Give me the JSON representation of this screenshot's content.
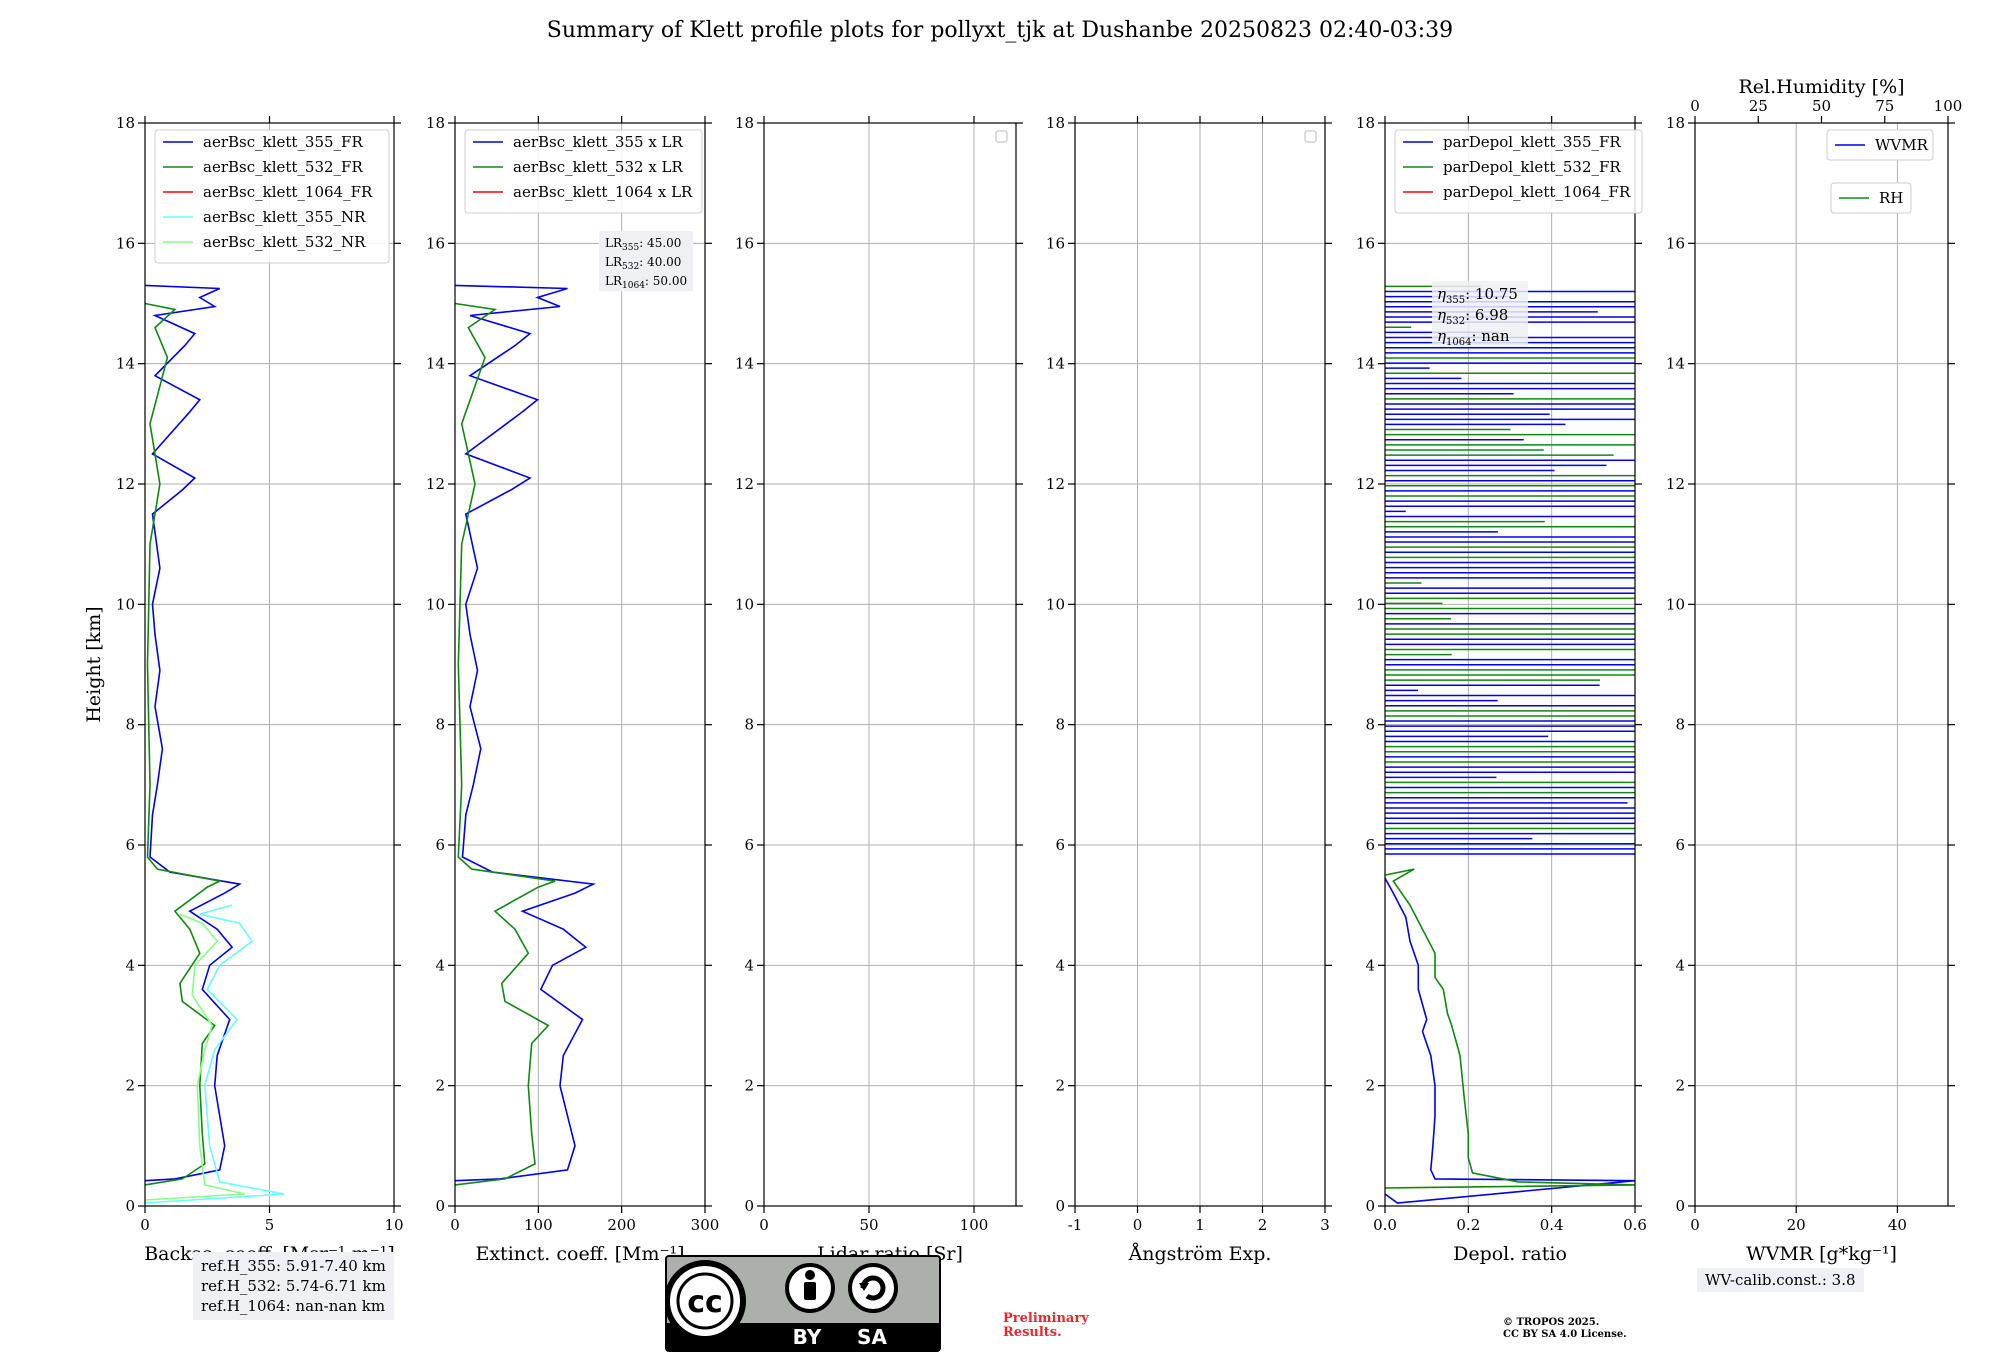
{
  "title": "Summary of Klett profile plots for pollyxt_tjk at Dushanbe 20250823 02:40-03:39",
  "colors": {
    "blue": "#0000ee",
    "green": "#118811",
    "red": "#ff0000",
    "cyan": "#66ffff",
    "lightgreen": "#88ff88",
    "grid": "#b0b0b0"
  },
  "chart_data": [
    {
      "type": "line",
      "id": "bsc",
      "xlabel": "Backsc. coeff. [Msr⁻¹ m⁻¹]",
      "ylabel": "Height [km]",
      "xlim": [
        0,
        10
      ],
      "ylim": [
        0,
        18
      ],
      "xticks": [
        0,
        5,
        10
      ],
      "yticks": [
        0,
        2,
        4,
        6,
        8,
        10,
        12,
        14,
        16,
        18
      ],
      "legend_position": "top-left",
      "legend": [
        {
          "label": "aerBsc_klett_355_FR",
          "color": "#0000ee"
        },
        {
          "label": "aerBsc_klett_532_FR",
          "color": "#118811"
        },
        {
          "label": "aerBsc_klett_1064_FR",
          "color": "#ff0000"
        },
        {
          "label": "aerBsc_klett_355_NR",
          "color": "#66ffff"
        },
        {
          "label": "aerBsc_klett_532_NR",
          "color": "#88ff88"
        }
      ],
      "series": [
        {
          "name": "aerBsc_klett_355_FR",
          "color": "#0000ee",
          "points": [
            [
              0,
              0.42
            ],
            [
              1.2,
              0.45
            ],
            [
              3.0,
              0.6
            ],
            [
              3.2,
              1.0
            ],
            [
              3.0,
              1.5
            ],
            [
              2.8,
              2.0
            ],
            [
              2.9,
              2.5
            ],
            [
              3.4,
              3.1
            ],
            [
              2.3,
              3.6
            ],
            [
              2.6,
              4.0
            ],
            [
              3.5,
              4.3
            ],
            [
              2.9,
              4.6
            ],
            [
              1.8,
              4.9
            ],
            [
              3.2,
              5.2
            ],
            [
              3.8,
              5.35
            ],
            [
              1.0,
              5.55
            ],
            [
              0.2,
              5.8
            ],
            [
              0.3,
              6.5
            ],
            [
              0.5,
              7.0
            ],
            [
              0.7,
              7.6
            ],
            [
              0.4,
              8.3
            ],
            [
              0.6,
              8.9
            ],
            [
              0.4,
              9.5
            ],
            [
              0.3,
              10.0
            ],
            [
              0.6,
              10.6
            ],
            [
              0.3,
              11.5
            ],
            [
              1.5,
              11.9
            ],
            [
              2.0,
              12.1
            ],
            [
              0.3,
              12.5
            ],
            [
              1.8,
              13.2
            ],
            [
              2.2,
              13.4
            ],
            [
              0.4,
              13.8
            ],
            [
              1.6,
              14.3
            ],
            [
              2.0,
              14.5
            ],
            [
              0.4,
              14.8
            ],
            [
              2.8,
              14.95
            ],
            [
              2.2,
              15.1
            ],
            [
              3.0,
              15.25
            ],
            [
              0,
              15.3
            ]
          ]
        },
        {
          "name": "aerBsc_klett_532_FR",
          "color": "#118811",
          "points": [
            [
              0,
              0.35
            ],
            [
              1.5,
              0.45
            ],
            [
              2.4,
              0.7
            ],
            [
              2.3,
              1.2
            ],
            [
              2.2,
              2.0
            ],
            [
              2.3,
              2.7
            ],
            [
              2.8,
              3.0
            ],
            [
              1.5,
              3.4
            ],
            [
              1.4,
              3.7
            ],
            [
              2.2,
              4.2
            ],
            [
              1.8,
              4.6
            ],
            [
              1.2,
              4.9
            ],
            [
              2.5,
              5.3
            ],
            [
              3.0,
              5.4
            ],
            [
              0.5,
              5.6
            ],
            [
              0.1,
              5.8
            ],
            [
              0.2,
              7.0
            ],
            [
              0.1,
              9.0
            ],
            [
              0.2,
              11.0
            ],
            [
              0.6,
              12.0
            ],
            [
              0.2,
              13.0
            ],
            [
              0.9,
              14.1
            ],
            [
              0.4,
              14.6
            ],
            [
              1.2,
              14.9
            ],
            [
              0,
              15.0
            ]
          ]
        },
        {
          "name": "aerBsc_klett_355_NR",
          "color": "#66ffff",
          "points": [
            [
              0,
              0.05
            ],
            [
              5.6,
              0.2
            ],
            [
              3.0,
              0.4
            ],
            [
              2.6,
              1.0
            ],
            [
              2.4,
              2.0
            ],
            [
              2.8,
              2.6
            ],
            [
              3.7,
              3.1
            ],
            [
              2.5,
              3.6
            ],
            [
              3.0,
              4.0
            ],
            [
              4.3,
              4.4
            ],
            [
              3.8,
              4.7
            ],
            [
              2.2,
              4.85
            ],
            [
              3.5,
              5.0
            ]
          ]
        },
        {
          "name": "aerBsc_klett_532_NR",
          "color": "#88ff88",
          "points": [
            [
              0,
              0.1
            ],
            [
              4.0,
              0.2
            ],
            [
              2.4,
              0.35
            ],
            [
              2.2,
              1.0
            ],
            [
              2.1,
              2.0
            ],
            [
              2.4,
              2.6
            ],
            [
              2.7,
              3.0
            ],
            [
              1.9,
              3.5
            ],
            [
              2.0,
              4.0
            ],
            [
              2.9,
              4.4
            ],
            [
              2.3,
              4.7
            ],
            [
              1.4,
              4.85
            ]
          ]
        }
      ],
      "info_box": [
        "ref.H_355: 5.91-7.40 km",
        "ref.H_532: 5.74-6.71 km",
        "ref.H_1064: nan-nan km"
      ]
    },
    {
      "type": "line",
      "id": "ext",
      "xlabel": "Extinct. coeff. [Mm⁻¹]",
      "xlim": [
        0,
        300
      ],
      "ylim": [
        0,
        18
      ],
      "xticks": [
        0,
        100,
        200,
        300
      ],
      "yticks": [
        0,
        2,
        4,
        6,
        8,
        10,
        12,
        14,
        16,
        18
      ],
      "legend_position": "top-left",
      "legend": [
        {
          "label": "aerBsc_klett_355 x LR",
          "color": "#0000ee"
        },
        {
          "label": "aerBsc_klett_532 x LR",
          "color": "#118811"
        },
        {
          "label": "aerBsc_klett_1064 x LR",
          "color": "#ff0000"
        }
      ],
      "lr_box": [
        {
          "sub": "355",
          "value": ": 45.00"
        },
        {
          "sub": "532",
          "value": ": 40.00"
        },
        {
          "sub": "1064",
          "value": ": 50.00"
        }
      ],
      "series": [
        {
          "name": "aerBsc_klett_355 x LR",
          "color": "#0000ee",
          "points": [
            [
              0,
              0.42
            ],
            [
              54,
              0.45
            ],
            [
              135,
              0.6
            ],
            [
              144,
              1.0
            ],
            [
              135,
              1.5
            ],
            [
              126,
              2.0
            ],
            [
              130,
              2.5
            ],
            [
              153,
              3.1
            ],
            [
              103,
              3.6
            ],
            [
              117,
              4.0
            ],
            [
              157,
              4.3
            ],
            [
              130,
              4.6
            ],
            [
              81,
              4.9
            ],
            [
              144,
              5.2
            ],
            [
              166,
              5.35
            ],
            [
              45,
              5.55
            ],
            [
              9,
              5.8
            ],
            [
              13,
              6.5
            ],
            [
              22,
              7.0
            ],
            [
              31,
              7.6
            ],
            [
              18,
              8.3
            ],
            [
              27,
              8.9
            ],
            [
              18,
              9.5
            ],
            [
              13,
              10.0
            ],
            [
              27,
              10.6
            ],
            [
              13,
              11.5
            ],
            [
              67,
              11.9
            ],
            [
              90,
              12.1
            ],
            [
              13,
              12.5
            ],
            [
              81,
              13.2
            ],
            [
              99,
              13.4
            ],
            [
              18,
              13.8
            ],
            [
              72,
              14.3
            ],
            [
              90,
              14.5
            ],
            [
              18,
              14.8
            ],
            [
              126,
              14.95
            ],
            [
              99,
              15.1
            ],
            [
              135,
              15.25
            ],
            [
              0,
              15.3
            ]
          ]
        },
        {
          "name": "aerBsc_klett_532 x LR",
          "color": "#118811",
          "points": [
            [
              0,
              0.35
            ],
            [
              60,
              0.45
            ],
            [
              96,
              0.7
            ],
            [
              92,
              1.2
            ],
            [
              88,
              2.0
            ],
            [
              92,
              2.7
            ],
            [
              112,
              3.0
            ],
            [
              60,
              3.4
            ],
            [
              56,
              3.7
            ],
            [
              88,
              4.2
            ],
            [
              72,
              4.6
            ],
            [
              48,
              4.9
            ],
            [
              100,
              5.3
            ],
            [
              120,
              5.4
            ],
            [
              20,
              5.6
            ],
            [
              4,
              5.8
            ],
            [
              8,
              7.0
            ],
            [
              4,
              9.0
            ],
            [
              8,
              11.0
            ],
            [
              24,
              12.0
            ],
            [
              8,
              13.0
            ],
            [
              36,
              14.1
            ],
            [
              16,
              14.6
            ],
            [
              48,
              14.9
            ],
            [
              0,
              15.0
            ]
          ]
        }
      ]
    },
    {
      "type": "line",
      "id": "lr",
      "xlabel": "Lidar ratio [Sr]",
      "xlim": [
        0,
        120
      ],
      "ylim": [
        0,
        18
      ],
      "xticks": [
        0,
        50,
        100
      ],
      "yticks": [
        0,
        2,
        4,
        6,
        8,
        10,
        12,
        14,
        16,
        18
      ],
      "legend_position": "top-right",
      "series": []
    },
    {
      "type": "line",
      "id": "ang",
      "xlabel": "Ångström Exp.",
      "xlim": [
        -1,
        3
      ],
      "ylim": [
        0,
        18
      ],
      "xticks": [
        -1,
        0,
        1,
        2,
        3
      ],
      "yticks": [
        0,
        2,
        4,
        6,
        8,
        10,
        12,
        14,
        16,
        18
      ],
      "legend_position": "top-right",
      "series": []
    },
    {
      "type": "line",
      "id": "depol",
      "xlabel": "Depol. ratio",
      "xlim": [
        0,
        0.6
      ],
      "ylim": [
        0,
        18
      ],
      "xticks": [
        0.0,
        0.2,
        0.4,
        0.6
      ],
      "xtick_labels": [
        "0.0",
        "0.2",
        "0.4",
        "0.6"
      ],
      "yticks": [
        0,
        2,
        4,
        6,
        8,
        10,
        12,
        14,
        16,
        18
      ],
      "legend_position": "top-left",
      "legend": [
        {
          "label": "parDepol_klett_355_FR",
          "color": "#0000ee"
        },
        {
          "label": "parDepol_klett_532_FR",
          "color": "#118811"
        },
        {
          "label": "parDepol_klett_1064_FR",
          "color": "#ff0000"
        }
      ],
      "eta_box": [
        {
          "sub": "355",
          "value": ": 10.75"
        },
        {
          "sub": "532",
          "value": ": 6.98"
        },
        {
          "sub": "1064",
          "value": ": nan"
        }
      ],
      "noise_region_km": [
        5.85,
        15.3
      ],
      "series": [
        {
          "name": "parDepol_klett_355_FR",
          "color": "#0000ee",
          "points": [
            [
              0,
              0.2
            ],
            [
              0.03,
              0.05
            ],
            [
              0.6,
              0.42
            ],
            [
              0.12,
              0.45
            ],
            [
              0.11,
              0.6
            ],
            [
              0.115,
              1.0
            ],
            [
              0.12,
              1.5
            ],
            [
              0.12,
              2.0
            ],
            [
              0.11,
              2.5
            ],
            [
              0.09,
              2.9
            ],
            [
              0.1,
              3.1
            ],
            [
              0.08,
              3.6
            ],
            [
              0.08,
              4.0
            ],
            [
              0.06,
              4.4
            ],
            [
              0.05,
              4.8
            ],
            [
              0.02,
              5.2
            ],
            [
              0.0,
              5.45
            ]
          ]
        },
        {
          "name": "parDepol_klett_532_FR",
          "color": "#118811",
          "points": [
            [
              0,
              0.3
            ],
            [
              0.6,
              0.35
            ],
            [
              0.32,
              0.4
            ],
            [
              0.21,
              0.55
            ],
            [
              0.2,
              0.8
            ],
            [
              0.2,
              1.2
            ],
            [
              0.19,
              1.8
            ],
            [
              0.18,
              2.5
            ],
            [
              0.16,
              3.0
            ],
            [
              0.15,
              3.2
            ],
            [
              0.14,
              3.6
            ],
            [
              0.12,
              3.8
            ],
            [
              0.12,
              4.2
            ],
            [
              0.09,
              4.6
            ],
            [
              0.06,
              5.0
            ],
            [
              0.02,
              5.4
            ],
            [
              0.07,
              5.6
            ],
            [
              0.0,
              5.5
            ]
          ]
        }
      ]
    },
    {
      "type": "line",
      "id": "wv",
      "xlabel": "WVMR [g*kg⁻¹]",
      "top_xlabel": "Rel.Humidity [%]",
      "xlim": [
        0,
        50
      ],
      "ylim": [
        0,
        18
      ],
      "top_xlim": [
        0,
        100
      ],
      "xticks": [
        0,
        20,
        40
      ],
      "top_xticks": [
        0,
        25,
        50,
        75,
        100
      ],
      "yticks": [
        0,
        2,
        4,
        6,
        8,
        10,
        12,
        14,
        16,
        18
      ],
      "legend": [
        {
          "label": "WVMR",
          "color": "#0000ee"
        },
        {
          "label": "RH",
          "color": "#118811"
        }
      ],
      "series": []
    }
  ],
  "wv_calib": "WV-calib.const.: 3.8",
  "preliminary": [
    "Preliminary",
    "Results."
  ],
  "copyright": [
    "© TROPOS 2025.",
    "CC BY SA 4.0 License."
  ],
  "cc_badge": {
    "by": "BY",
    "sa": "SA"
  }
}
